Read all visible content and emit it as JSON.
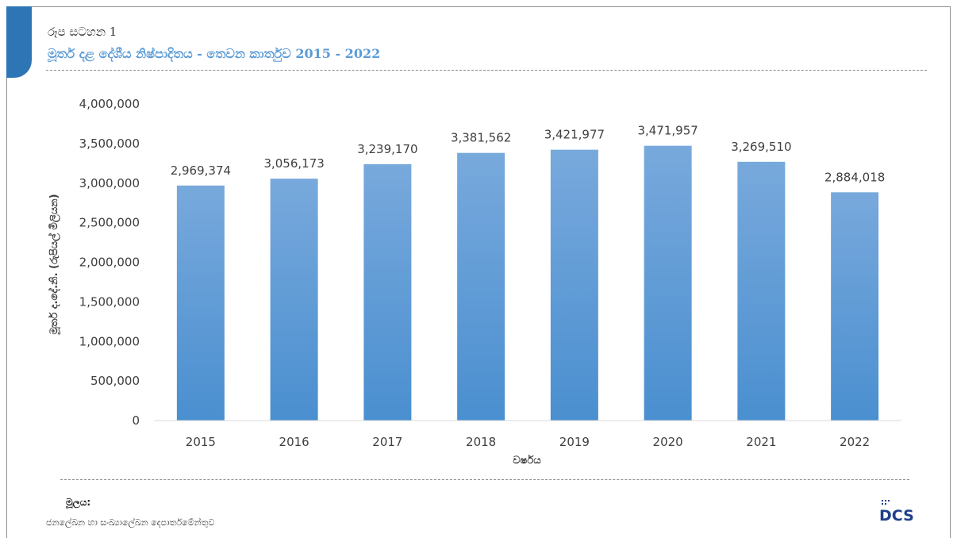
{
  "caption": {
    "label": "රූප සටහන 1",
    "title": "මූර්ත දළ දේශීය නිෂ්පාදිතය - තෙවන කාර්තුව 2015 - 2022"
  },
  "source": {
    "label": "මූලය:",
    "text": "ජනලේඛන හා සංඛ්‍යාලේඛන දෙපාර්තමේන්තුව"
  },
  "logo": {
    "text": "DCS"
  },
  "colors": {
    "bar": "#5b9bd5",
    "title": "#5b9bd5",
    "accent": "#2e75b6"
  },
  "chart_data": {
    "type": "bar",
    "title": "",
    "xlabel": "වර්ෂය",
    "ylabel": "මූර්ත ද.දේ.නි. (රුපියල් මිලියන)",
    "categories": [
      "2015",
      "2016",
      "2017",
      "2018",
      "2019",
      "2020",
      "2021",
      "2022"
    ],
    "values": [
      2969374,
      3056173,
      3239170,
      3381562,
      3421977,
      3471957,
      3269510,
      2884018
    ],
    "value_labels": [
      "2,969,374",
      "3,056,173",
      "3,239,170",
      "3,381,562",
      "3,421,977",
      "3,471,957",
      "3,269,510",
      "2,884,018"
    ],
    "yticks": [
      0,
      500000,
      1000000,
      1500000,
      2000000,
      2500000,
      3000000,
      3500000,
      4000000
    ],
    "ytick_labels": [
      "0",
      "500,000",
      "1,000,000",
      "1,500,000",
      "2,000,000",
      "2,500,000",
      "3,000,000",
      "3,500,000",
      "4,000,000"
    ],
    "ylim": [
      0,
      4000000
    ],
    "grid": false,
    "legend": "none"
  }
}
